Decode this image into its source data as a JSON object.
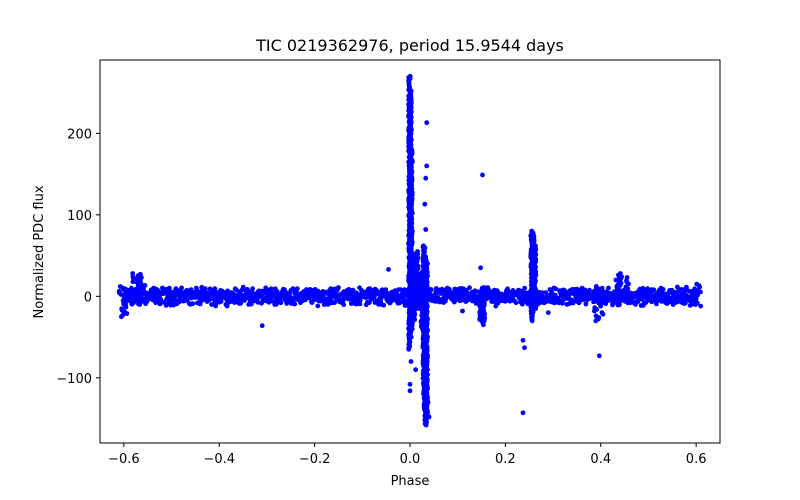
{
  "chart_data": {
    "type": "scatter",
    "title": "TIC 0219362976, period 15.9544 days",
    "xlabel": "Phase",
    "ylabel": "Normalized PDC flux",
    "xlim": [
      -0.65,
      0.65
    ],
    "ylim": [
      -180,
      290
    ],
    "xticks": [
      -0.6,
      -0.4,
      -0.2,
      0.0,
      0.2,
      0.4,
      0.6
    ],
    "xtick_labels": [
      "−0.6",
      "−0.4",
      "−0.2",
      "0.0",
      "0.2",
      "0.4",
      "0.6"
    ],
    "yticks": [
      -100,
      0,
      100,
      200
    ],
    "ytick_labels": [
      "−100",
      "0",
      "100",
      "200"
    ],
    "grid": false,
    "marker_color": "#0000ff",
    "series": [
      {
        "name": "band",
        "description": "dense baseline scatter around zero",
        "x_range": [
          -0.6,
          0.6
        ],
        "y_half_width": 8,
        "x_step": 0.0025,
        "features": [
          {
            "x": -0.6,
            "y_min": -25,
            "y_max": 12
          },
          {
            "x": -0.575,
            "y_min": -10,
            "y_max": 28
          },
          {
            "x": -0.565,
            "y_min": -8,
            "y_max": 27
          },
          {
            "x": 0.44,
            "y_min": -8,
            "y_max": 28
          },
          {
            "x": 0.45,
            "y_min": -8,
            "y_max": 25
          },
          {
            "x": 0.395,
            "y_min": -30,
            "y_max": 12
          },
          {
            "x": 0.6,
            "y_min": -12,
            "y_max": 15
          }
        ]
      },
      {
        "name": "spikes",
        "description": "vertical excursions",
        "columns": [
          {
            "x": -0.001,
            "y_min": -65,
            "y_max": 270
          },
          {
            "x": 0.001,
            "y_min": -50,
            "y_max": 255
          },
          {
            "x": 0.003,
            "y_min": -40,
            "y_max": 180
          },
          {
            "x": 0.008,
            "y_min": -30,
            "y_max": 52
          },
          {
            "x": 0.015,
            "y_min": -15,
            "y_max": 55
          },
          {
            "x": 0.025,
            "y_min": -40,
            "y_max": 30
          },
          {
            "x": 0.029,
            "y_min": -120,
            "y_max": 62
          },
          {
            "x": 0.031,
            "y_min": -140,
            "y_max": 50
          },
          {
            "x": 0.033,
            "y_min": -158,
            "y_max": 45
          },
          {
            "x": 0.035,
            "y_min": -150,
            "y_max": 40
          },
          {
            "x": 0.255,
            "y_min": -30,
            "y_max": 80
          },
          {
            "x": 0.258,
            "y_min": -20,
            "y_max": 78
          },
          {
            "x": 0.262,
            "y_min": -15,
            "y_max": 62
          },
          {
            "x": 0.148,
            "y_min": -30,
            "y_max": 5
          },
          {
            "x": 0.155,
            "y_min": -35,
            "y_max": 5
          }
        ]
      },
      {
        "name": "outliers",
        "points": [
          [
            0.035,
            213
          ],
          [
            0.035,
            160
          ],
          [
            0.033,
            145
          ],
          [
            0.031,
            113
          ],
          [
            0.033,
            82
          ],
          [
            0.031,
            60
          ],
          [
            0.152,
            149
          ],
          [
            0.148,
            35
          ],
          [
            -0.045,
            33
          ],
          [
            -0.31,
            -36
          ],
          [
            0.237,
            -143
          ],
          [
            0.237,
            -54
          ],
          [
            0.24,
            -63
          ],
          [
            0.397,
            -73
          ],
          [
            0.0,
            -108
          ],
          [
            0.0,
            -116
          ],
          [
            0.002,
            -80
          ],
          [
            0.038,
            -130
          ],
          [
            0.04,
            -148
          ],
          [
            0.012,
            -90
          ],
          [
            0.11,
            -18
          ],
          [
            0.18,
            -12
          ],
          [
            -0.18,
            -10
          ],
          [
            0.29,
            -20
          ]
        ]
      }
    ]
  }
}
